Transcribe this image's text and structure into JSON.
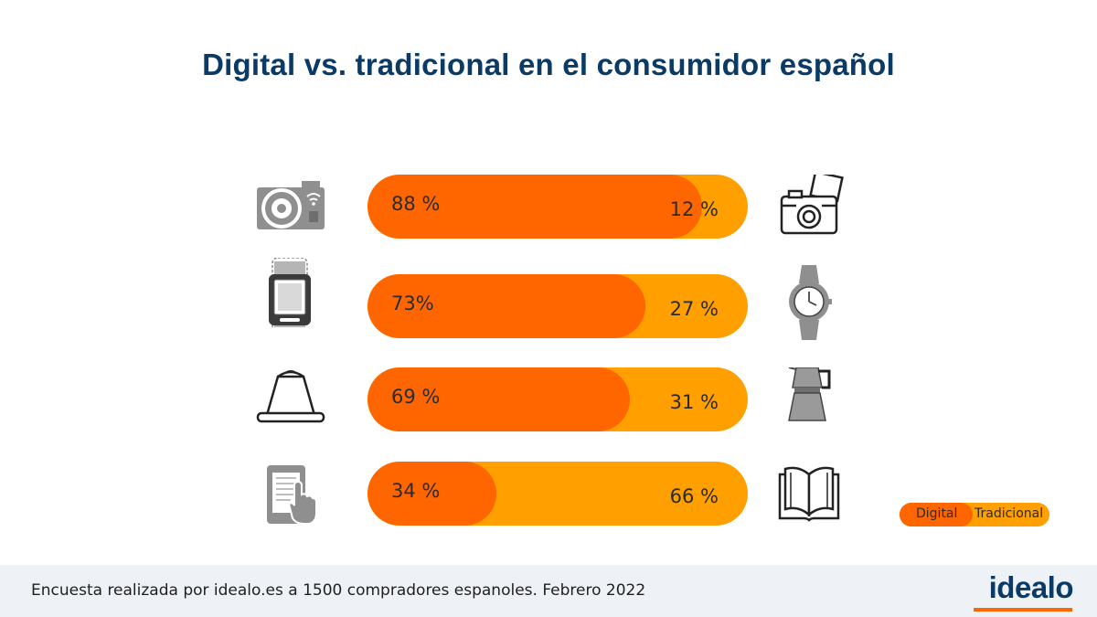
{
  "title": "Digital vs. tradicional en el consumidor español",
  "chart_data": {
    "type": "bar",
    "stacked": true,
    "orientation": "horizontal",
    "categories": [
      "Cámaras",
      "Relojes",
      "Café",
      "Libros"
    ],
    "series": [
      {
        "name": "Digital",
        "values": [
          88,
          73,
          69,
          34
        ],
        "color": "#ff6600"
      },
      {
        "name": "Tradicional",
        "values": [
          12,
          27,
          31,
          66
        ],
        "color": "#ff9f00"
      }
    ],
    "labels": {
      "digital": [
        "88 %",
        "73%",
        "69 %",
        "34 %"
      ],
      "tradicional": [
        "12 %",
        "27 %",
        "31 %",
        "66 %"
      ]
    },
    "icons": {
      "digital": [
        "digital-camera-icon",
        "smartwatch-icon",
        "coffee-capsule-icon",
        "ebook-reader-icon"
      ],
      "tradicional": [
        "instant-camera-icon",
        "analog-watch-icon",
        "moka-pot-icon",
        "book-icon"
      ]
    },
    "legend": {
      "digital": "Digital",
      "tradicional": "Tradicional"
    },
    "xlim": [
      0,
      100
    ]
  },
  "footer": {
    "note": "Encuesta realizada por idealo.es a 1500 compradores espanoles. Febrero 2022",
    "brand": "idealo"
  },
  "colors": {
    "title": "#0a3b66",
    "digital": "#ff6600",
    "tradicional": "#ff9f00",
    "footer_bg": "#eef1f5"
  }
}
